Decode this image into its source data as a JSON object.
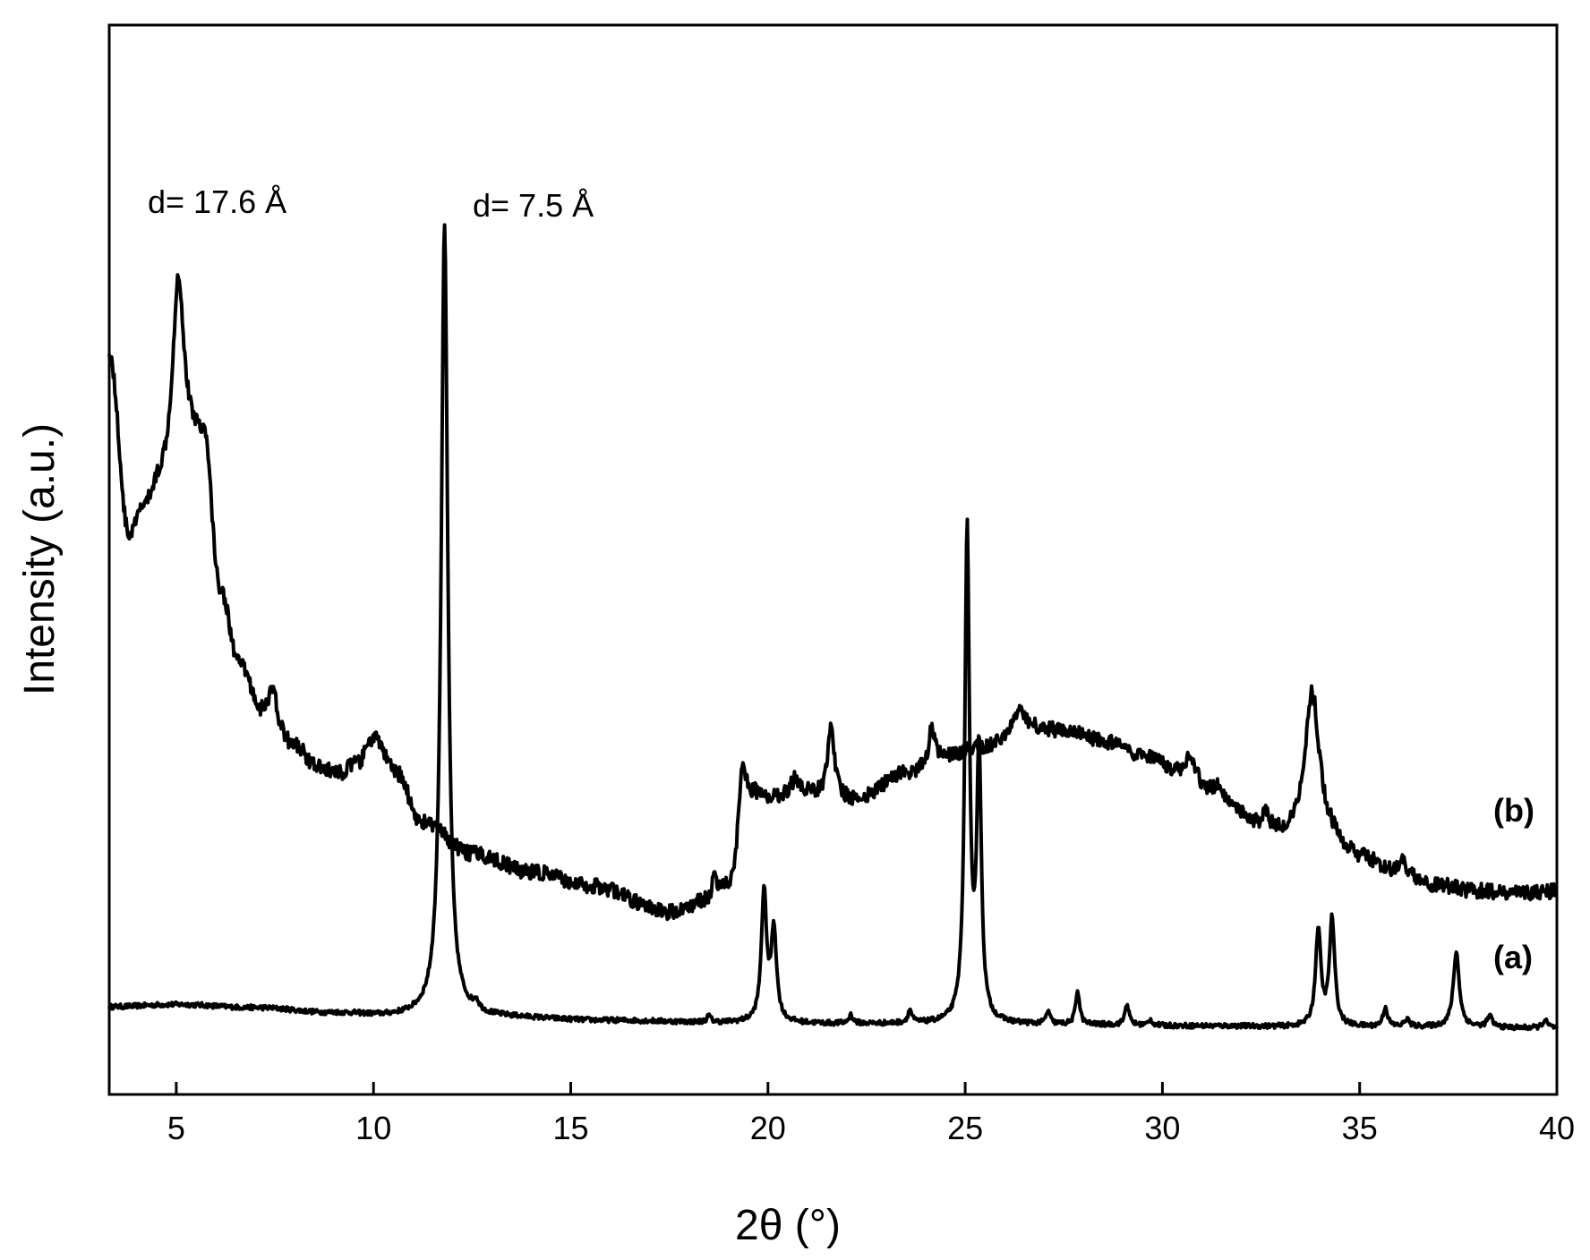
{
  "chart_data": {
    "type": "line",
    "title": "",
    "xlabel": "2θ (°)",
    "ylabel": "Intensity (a.u.)",
    "xlim": [
      3.3,
      40
    ],
    "ylim": [
      0,
      100
    ],
    "x_ticks": [
      5,
      10,
      15,
      20,
      25,
      30,
      35,
      40
    ],
    "y_ticks_shown": false,
    "grid": false,
    "annotations": [
      {
        "text": "d= 17.6 Å",
        "x": 5.0
      },
      {
        "text": "d= 7.5 Å",
        "x": 11.8
      }
    ],
    "series": [
      {
        "name": "(a)",
        "baseline": [
          [
            3.3,
            8.2
          ],
          [
            5,
            8.4
          ],
          [
            7,
            8.1
          ],
          [
            9,
            7.6
          ],
          [
            10.5,
            7.3
          ],
          [
            11.5,
            7.3
          ],
          [
            13,
            7.2
          ],
          [
            16,
            6.9
          ],
          [
            19,
            6.7
          ],
          [
            22,
            6.6
          ],
          [
            25,
            6.6
          ],
          [
            28,
            6.5
          ],
          [
            31,
            6.4
          ],
          [
            34,
            6.3
          ],
          [
            37,
            6.3
          ],
          [
            40,
            6.2
          ]
        ],
        "peaks": [
          [
            11.8,
            74.0,
            0.1
          ],
          [
            12.6,
            0.8,
            0.08
          ],
          [
            18.5,
            0.6,
            0.06
          ],
          [
            19.9,
            12.0,
            0.08
          ],
          [
            20.15,
            8.5,
            0.08
          ],
          [
            22.1,
            0.8,
            0.06
          ],
          [
            23.6,
            1.2,
            0.06
          ],
          [
            25.05,
            46.0,
            0.07
          ],
          [
            25.35,
            25.0,
            0.07
          ],
          [
            27.1,
            1.2,
            0.06
          ],
          [
            27.85,
            3.2,
            0.06
          ],
          [
            29.1,
            2.0,
            0.06
          ],
          [
            29.7,
            0.5,
            0.06
          ],
          [
            33.95,
            9.0,
            0.08
          ],
          [
            34.3,
            10.0,
            0.08
          ],
          [
            35.65,
            1.8,
            0.07
          ],
          [
            36.2,
            0.7,
            0.07
          ],
          [
            37.45,
            7.0,
            0.09
          ],
          [
            38.3,
            1.0,
            0.08
          ],
          [
            39.7,
            0.7,
            0.08
          ]
        ]
      },
      {
        "name": "(b)",
        "baseline": [
          [
            3.3,
            69.0
          ],
          [
            3.8,
            52.0
          ],
          [
            4.2,
            54.5
          ],
          [
            4.6,
            56.5
          ],
          [
            5.7,
            61.0
          ],
          [
            6.1,
            47.0
          ],
          [
            6.6,
            40.0
          ],
          [
            7.2,
            35.5
          ],
          [
            8.0,
            32.5
          ],
          [
            8.6,
            30.5
          ],
          [
            9.1,
            30.0
          ],
          [
            9.6,
            31.0
          ],
          [
            10.0,
            33.3
          ],
          [
            10.6,
            30.0
          ],
          [
            11.2,
            25.5
          ],
          [
            12.5,
            22.5
          ],
          [
            14.0,
            20.8
          ],
          [
            15.5,
            19.5
          ],
          [
            17.5,
            17.0
          ],
          [
            18.5,
            18.0
          ],
          [
            19.0,
            19.0
          ],
          [
            19.7,
            27.5
          ],
          [
            21.0,
            28.0
          ],
          [
            22.2,
            27.5
          ],
          [
            23.5,
            30.0
          ],
          [
            24.5,
            31.5
          ],
          [
            25.5,
            32.5
          ],
          [
            26.5,
            34.0
          ],
          [
            27.5,
            34.0
          ],
          [
            28.5,
            33.0
          ],
          [
            29.5,
            31.5
          ],
          [
            30.5,
            30.0
          ],
          [
            31.5,
            27.5
          ],
          [
            32.5,
            25.0
          ],
          [
            33.2,
            24.0
          ],
          [
            34.2,
            23.5
          ],
          [
            35.0,
            22.0
          ],
          [
            36.0,
            20.5
          ],
          [
            37.0,
            19.5
          ],
          [
            38.0,
            19.0
          ],
          [
            39.0,
            18.8
          ],
          [
            40.0,
            19.0
          ]
        ],
        "peaks": [
          [
            5.05,
            18.5,
            0.18
          ],
          [
            7.45,
            3.0,
            0.12
          ],
          [
            18.65,
            2.2,
            0.08
          ],
          [
            19.35,
            7.5,
            0.12
          ],
          [
            20.7,
            1.5,
            0.15
          ],
          [
            21.6,
            7.0,
            0.1
          ],
          [
            24.15,
            3.5,
            0.08
          ],
          [
            26.4,
            2.0,
            0.2
          ],
          [
            30.7,
            1.5,
            0.15
          ],
          [
            31.4,
            1.5,
            0.12
          ],
          [
            32.6,
            1.2,
            0.08
          ],
          [
            33.8,
            14.0,
            0.22
          ],
          [
            36.05,
            1.5,
            0.1
          ]
        ]
      }
    ]
  }
}
